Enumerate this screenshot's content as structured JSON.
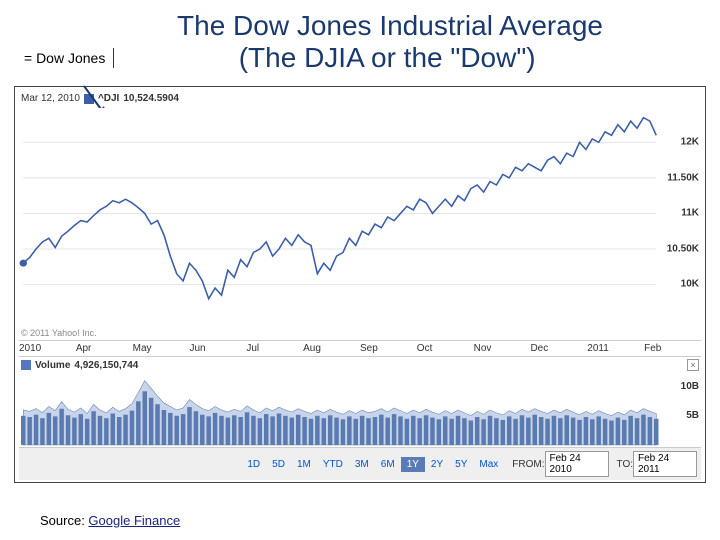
{
  "header": {
    "title_line1": "The Dow Jones Industrial Average",
    "title_line2": "(The DJIA or the \"Dow\")",
    "legend_label": "= Dow Jones"
  },
  "info": {
    "date": "Mar 12, 2010",
    "symbol": "^DJI",
    "value": "10,524.5904"
  },
  "price_chart": {
    "type": "line",
    "line_color": "#3b5ea8",
    "line_width": 1.5,
    "start_dot_color": "#3b5ea8",
    "background_color": "#ffffff",
    "grid_color": "#e5e5e5",
    "ylim": [
      9500,
      12400
    ],
    "yticks": [
      10000,
      10500,
      11000,
      11500,
      12000
    ],
    "ytick_labels": [
      "10K",
      "10.50K",
      "11K",
      "11.50K",
      "12K"
    ],
    "x_months": [
      "2010",
      "Apr",
      "May",
      "Jun",
      "Jul",
      "Aug",
      "Sep",
      "Oct",
      "Nov",
      "Dec",
      "2011",
      "Feb"
    ],
    "series": [
      10300,
      10380,
      10500,
      10600,
      10650,
      10520,
      10680,
      10750,
      10830,
      10900,
      10880,
      10970,
      11050,
      11100,
      11180,
      11150,
      11200,
      11150,
      11080,
      11000,
      10850,
      10900,
      10700,
      10400,
      10150,
      10050,
      10300,
      10200,
      10050,
      9800,
      9950,
      9850,
      10200,
      10100,
      10350,
      10250,
      10450,
      10500,
      10600,
      10400,
      10500,
      10650,
      10550,
      10700,
      10600,
      10550,
      10150,
      10300,
      10200,
      10400,
      10450,
      10650,
      10550,
      10750,
      10700,
      10850,
      10800,
      10950,
      10900,
      11000,
      11100,
      11050,
      11200,
      11150,
      11000,
      11100,
      11200,
      11100,
      11250,
      11180,
      11350,
      11400,
      11300,
      11450,
      11400,
      11550,
      11500,
      11650,
      11600,
      11700,
      11650,
      11600,
      11750,
      11800,
      11700,
      11850,
      11800,
      12000,
      11900,
      12050,
      12000,
      12150,
      12100,
      12250,
      12150,
      12300,
      12200,
      12350,
      12300,
      12100
    ],
    "copyright": "© 2011 Yahoo! Inc."
  },
  "volume": {
    "label": "Volume",
    "value": "4,926,150,744",
    "bar_color": "#5a7ab0",
    "area_color": "#c8d4ea",
    "area_border": "#5a7ab0",
    "ylim": [
      0,
      12000000000
    ],
    "yticks": [
      5000000000,
      10000000000
    ],
    "ytick_labels": [
      "5B",
      "10B"
    ],
    "bars": [
      5.0,
      4.8,
      5.2,
      4.6,
      5.5,
      4.9,
      6.2,
      5.1,
      4.7,
      5.3,
      4.5,
      5.8,
      5.0,
      4.6,
      5.4,
      4.8,
      5.2,
      5.9,
      7.5,
      9.2,
      8.1,
      7.0,
      6.0,
      5.5,
      5.0,
      5.3,
      6.5,
      5.8,
      5.2,
      4.9,
      5.5,
      5.0,
      4.7,
      5.1,
      4.8,
      5.6,
      5.0,
      4.6,
      5.3,
      4.9,
      5.4,
      5.0,
      4.7,
      5.2,
      4.8,
      4.5,
      5.0,
      4.6,
      5.1,
      4.7,
      4.4,
      4.9,
      4.5,
      5.0,
      4.6,
      4.8,
      5.2,
      4.7,
      5.3,
      4.9,
      4.5,
      5.0,
      4.6,
      5.1,
      4.7,
      4.4,
      4.9,
      4.5,
      5.0,
      4.6,
      4.2,
      4.8,
      4.4,
      5.0,
      4.6,
      4.3,
      4.9,
      4.5,
      5.1,
      4.7,
      5.2,
      4.8,
      4.5,
      5.0,
      4.6,
      5.1,
      4.7,
      4.3,
      4.8,
      4.4,
      4.9,
      4.5,
      4.2,
      4.7,
      4.3,
      5.0,
      4.6,
      5.2,
      4.8,
      4.5
    ]
  },
  "range": {
    "buttons": [
      "1D",
      "5D",
      "1M",
      "YTD",
      "3M",
      "6M",
      "1Y",
      "2Y",
      "5Y",
      "Max"
    ],
    "active_index": 6,
    "from_label": "FROM:",
    "from_value": "Feb 24 2010",
    "to_label": "TO:",
    "to_value": "Feb 24 2011"
  },
  "source": {
    "prefix": "Source: ",
    "link_text": "Google Finance"
  }
}
